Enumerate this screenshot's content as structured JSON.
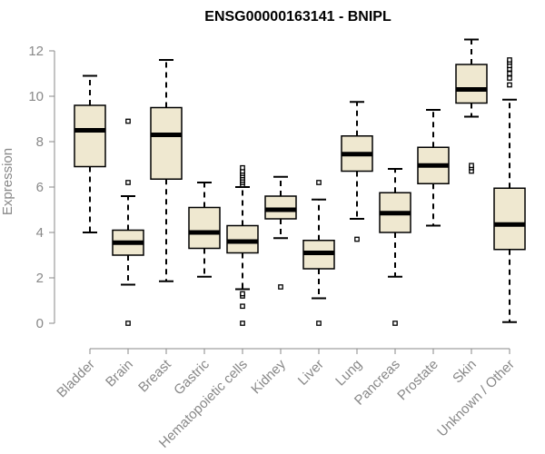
{
  "chart_data": {
    "type": "boxplot",
    "title": "ENSG00000163141 - BNIPL",
    "xlabel": "",
    "ylabel": "Expression",
    "ylim": [
      0,
      12
    ],
    "yticks": [
      0,
      2,
      4,
      6,
      8,
      10,
      12
    ],
    "grid": false,
    "colors": {
      "box_fill": "#efe8d0",
      "stroke": "#000000",
      "axis": "#888888"
    },
    "categories": [
      "Bladder",
      "Brain",
      "Breast",
      "Gastric",
      "Hematopoietic cells",
      "Kidney",
      "Liver",
      "Lung",
      "Pancreas",
      "Prostate",
      "Skin",
      "Unknown / Other"
    ],
    "boxes": [
      {
        "category": "Bladder",
        "whisker_low": 4.0,
        "q1": 6.9,
        "median": 8.5,
        "q3": 9.6,
        "whisker_high": 10.9,
        "outliers": []
      },
      {
        "category": "Brain",
        "whisker_low": 1.7,
        "q1": 3.0,
        "median": 3.55,
        "q3": 4.1,
        "whisker_high": 5.6,
        "outliers": [
          0.0,
          6.2,
          8.9
        ]
      },
      {
        "category": "Breast",
        "whisker_low": 1.85,
        "q1": 6.35,
        "median": 8.3,
        "q3": 9.5,
        "whisker_high": 11.6,
        "outliers": []
      },
      {
        "category": "Gastric",
        "whisker_low": 2.05,
        "q1": 3.3,
        "median": 4.0,
        "q3": 5.1,
        "whisker_high": 6.2,
        "outliers": []
      },
      {
        "category": "Hematopoietic cells",
        "whisker_low": 1.5,
        "q1": 3.1,
        "median": 3.6,
        "q3": 4.3,
        "whisker_high": 6.0,
        "outliers": [
          0.0,
          0.75,
          1.2,
          1.3,
          6.1,
          6.2,
          6.3,
          6.4,
          6.5,
          6.6,
          6.7,
          6.85
        ]
      },
      {
        "category": "Kidney",
        "whisker_low": 3.75,
        "q1": 4.6,
        "median": 5.0,
        "q3": 5.6,
        "whisker_high": 6.45,
        "outliers": [
          1.6
        ]
      },
      {
        "category": "Liver",
        "whisker_low": 1.1,
        "q1": 2.4,
        "median": 3.1,
        "q3": 3.65,
        "whisker_high": 5.45,
        "outliers": [
          0.0,
          6.2
        ]
      },
      {
        "category": "Lung",
        "whisker_low": 4.6,
        "q1": 6.7,
        "median": 7.45,
        "q3": 8.25,
        "whisker_high": 9.75,
        "outliers": [
          3.7
        ]
      },
      {
        "category": "Pancreas",
        "whisker_low": 2.05,
        "q1": 4.0,
        "median": 4.85,
        "q3": 5.75,
        "whisker_high": 6.8,
        "outliers": [
          0.0
        ]
      },
      {
        "category": "Prostate",
        "whisker_low": 4.3,
        "q1": 6.15,
        "median": 6.95,
        "q3": 7.75,
        "whisker_high": 9.4,
        "outliers": []
      },
      {
        "category": "Skin",
        "whisker_low": 9.1,
        "q1": 9.7,
        "median": 10.3,
        "q3": 11.4,
        "whisker_high": 12.5,
        "outliers": [
          6.7,
          6.85,
          6.95
        ]
      },
      {
        "category": "Unknown / Other",
        "whisker_low": 0.05,
        "q1": 3.25,
        "median": 4.35,
        "q3": 5.95,
        "whisker_high": 9.85,
        "outliers": [
          10.5,
          10.8,
          11.0,
          11.2,
          11.35,
          11.5,
          11.6
        ]
      }
    ]
  }
}
